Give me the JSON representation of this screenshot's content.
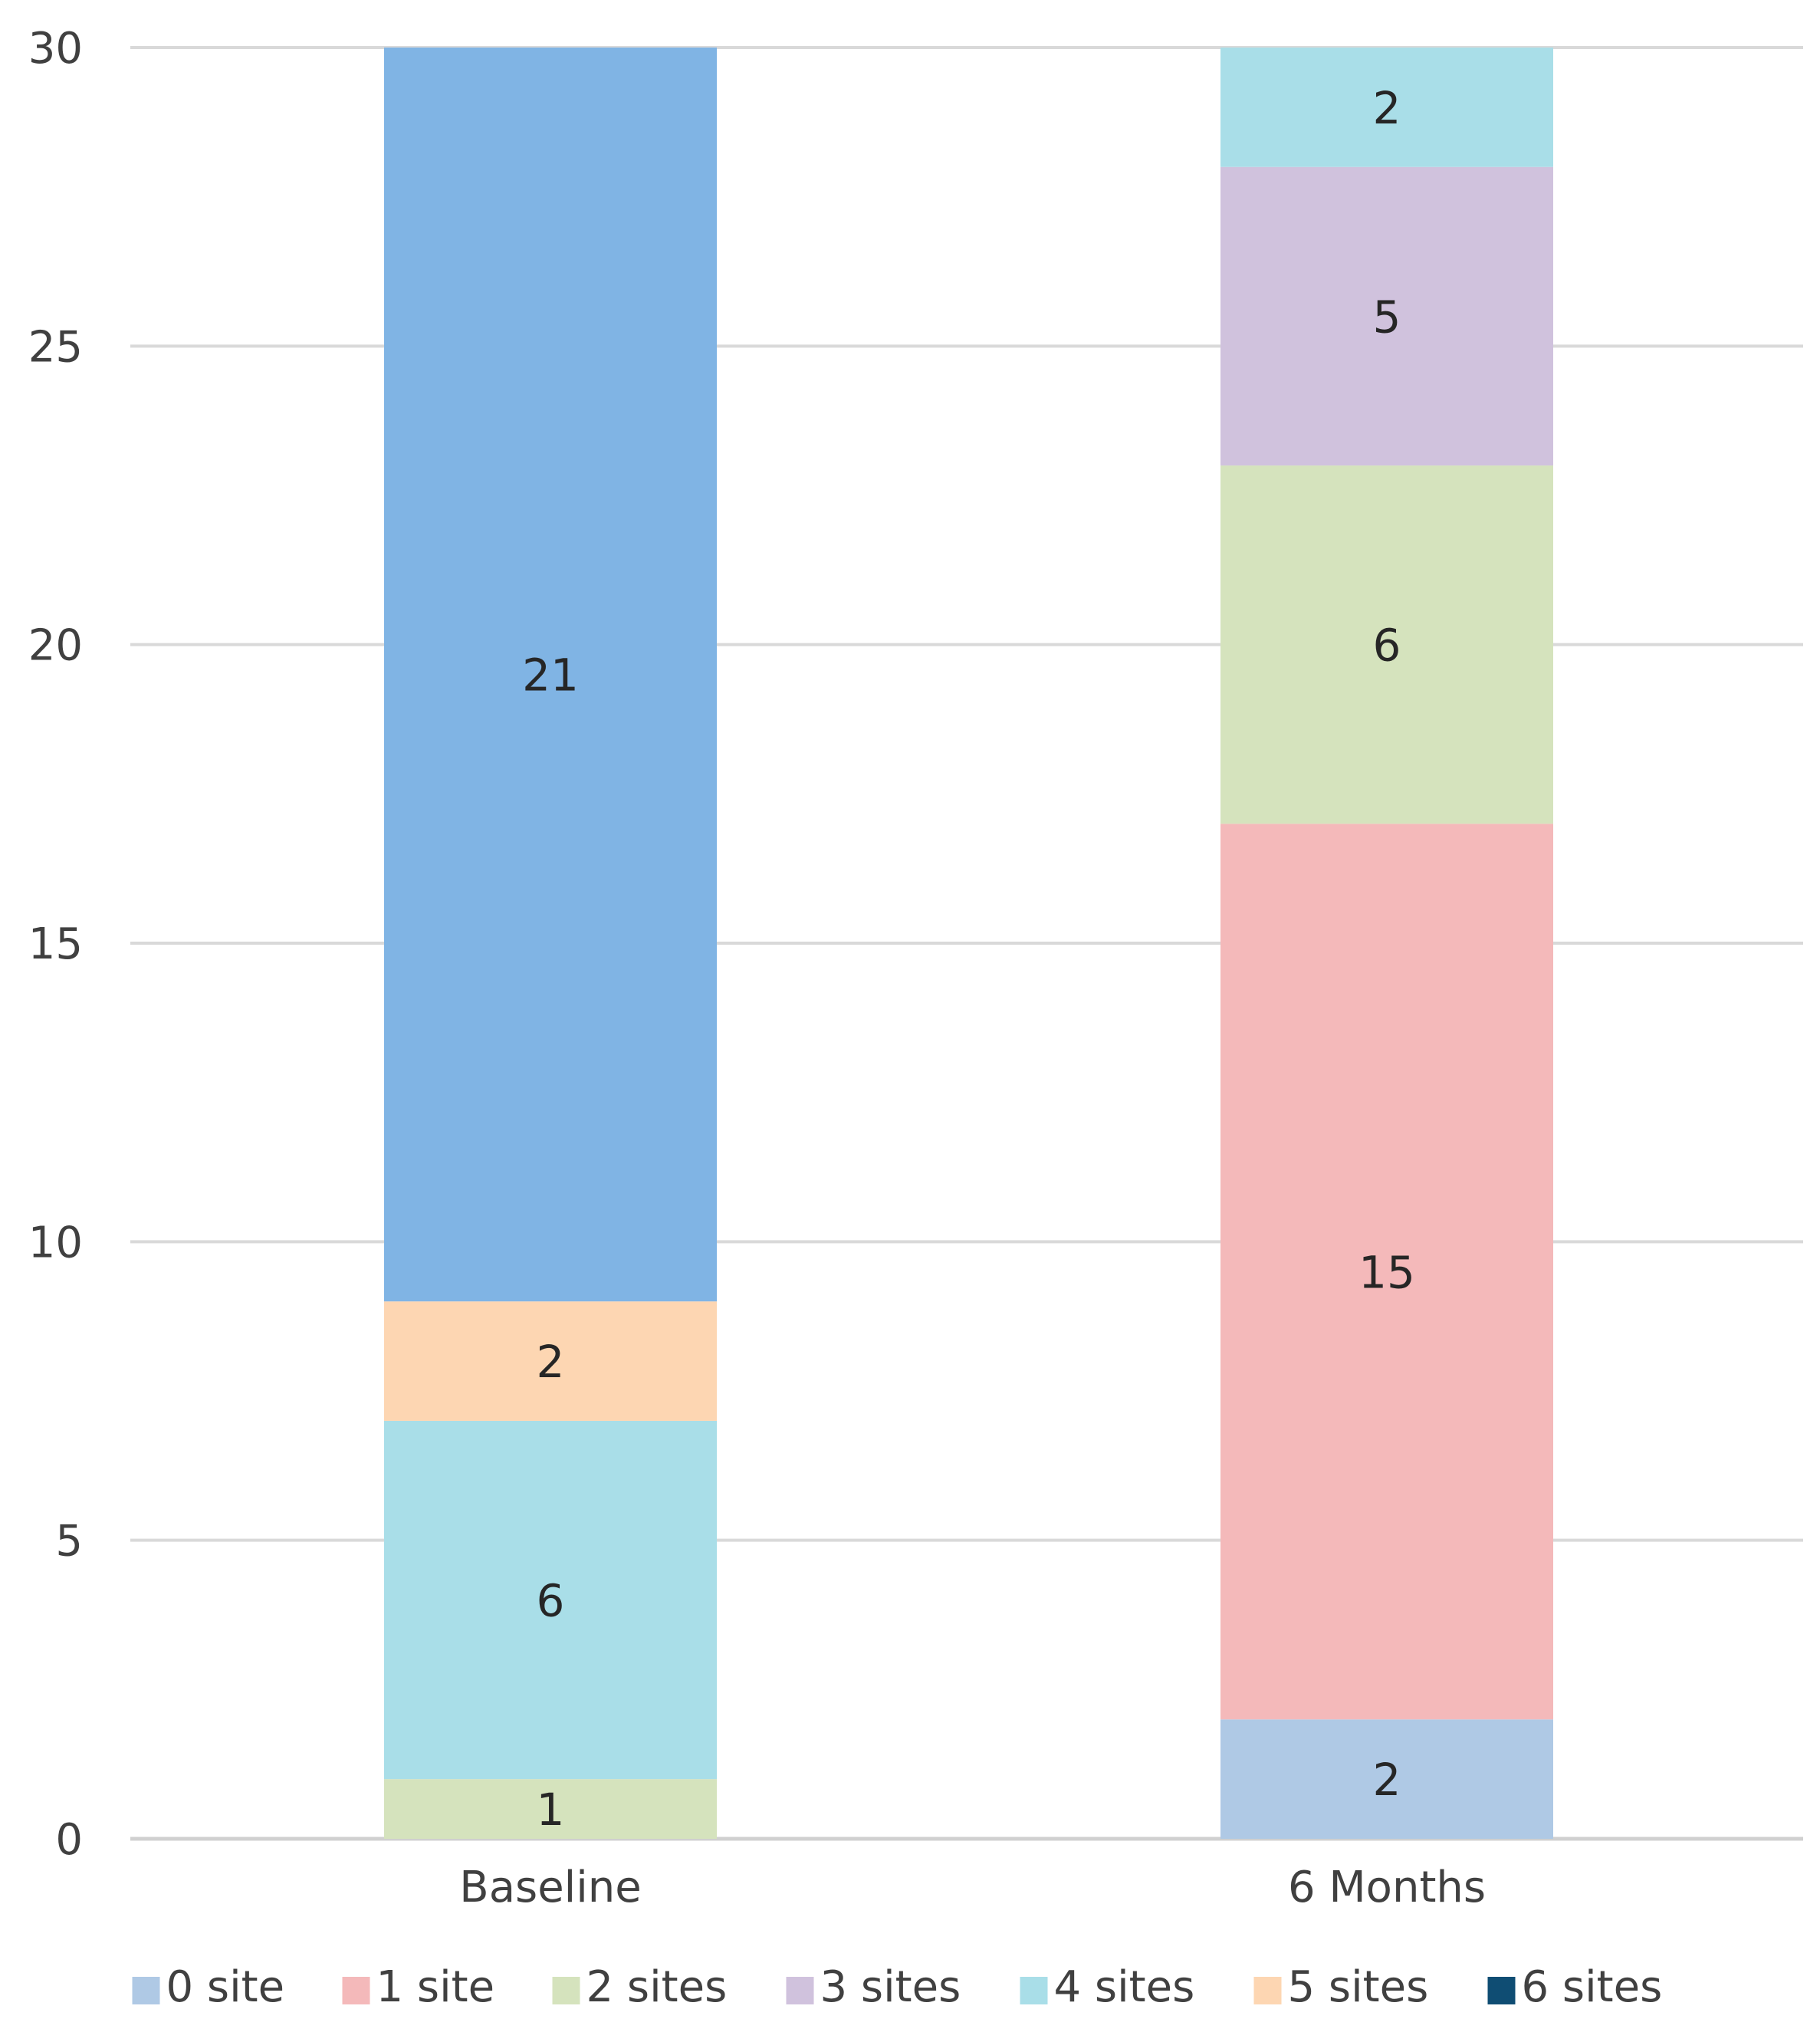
{
  "chart_data": {
    "type": "bar",
    "stacked": true,
    "title": "",
    "xlabel": "",
    "ylabel": "",
    "categories": [
      "Baseline",
      "6 Months"
    ],
    "ylim": [
      0,
      30
    ],
    "yticks": [
      0,
      5,
      10,
      15,
      20,
      25,
      30
    ],
    "grid": true,
    "legend_position": "bottom",
    "series": [
      {
        "name": "0 site",
        "color": "#afc9e5",
        "values": [
          0,
          2
        ]
      },
      {
        "name": "1 site",
        "color": "#f4b9ba",
        "values": [
          0,
          15
        ]
      },
      {
        "name": "2 sites",
        "color": "#d5e3bd",
        "values": [
          1,
          6
        ]
      },
      {
        "name": "3 sites",
        "color": "#d0c2dd",
        "values": [
          0,
          5
        ]
      },
      {
        "name": "4 sites",
        "color": "#a9dee8",
        "values": [
          6,
          2
        ]
      },
      {
        "name": "5 sites",
        "color": "#fdd6b2",
        "values": [
          2,
          0
        ]
      },
      {
        "name": "6 sites",
        "color": "#0f4d73",
        "values": [
          21,
          0
        ]
      }
    ],
    "bar_colors_override": {
      "6 sites": "#80b4e4"
    },
    "legend_swatch_colors": {
      "6 sites": "#0f4d73"
    }
  }
}
